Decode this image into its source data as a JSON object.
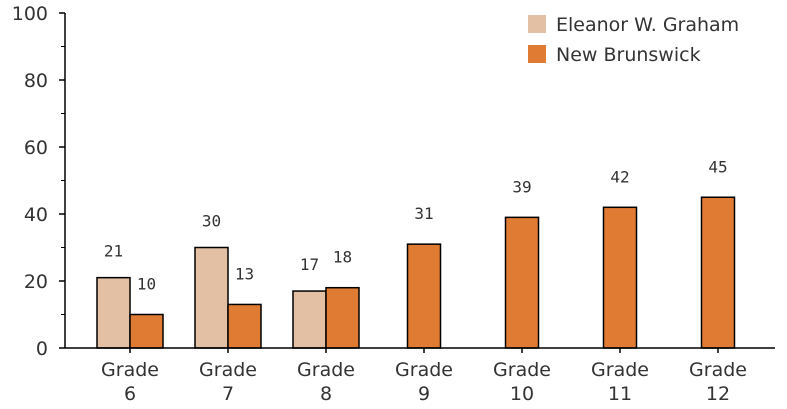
{
  "chart_data": {
    "type": "bar",
    "categories": [
      "Grade 6",
      "Grade 7",
      "Grade 8",
      "Grade 9",
      "Grade 10",
      "Grade 11",
      "Grade 12"
    ],
    "category_lines": [
      [
        "Grade",
        "6"
      ],
      [
        "Grade",
        "7"
      ],
      [
        "Grade",
        "8"
      ],
      [
        "Grade",
        "9"
      ],
      [
        "Grade",
        "10"
      ],
      [
        "Grade",
        "11"
      ],
      [
        "Grade",
        "12"
      ]
    ],
    "series": [
      {
        "name": "Eleanor W. Graham",
        "color": "#e3bfa4",
        "values": [
          21,
          30,
          17,
          null,
          null,
          null,
          null
        ]
      },
      {
        "name": "New Brunswick",
        "color": "#e07b33",
        "values": [
          10,
          13,
          18,
          31,
          39,
          42,
          45
        ]
      }
    ],
    "title": "",
    "xlabel": "",
    "ylabel": "",
    "ylim": [
      0,
      100
    ],
    "yticks": [
      0,
      20,
      40,
      60,
      80,
      100
    ],
    "grid": false,
    "legend": "top-right"
  }
}
